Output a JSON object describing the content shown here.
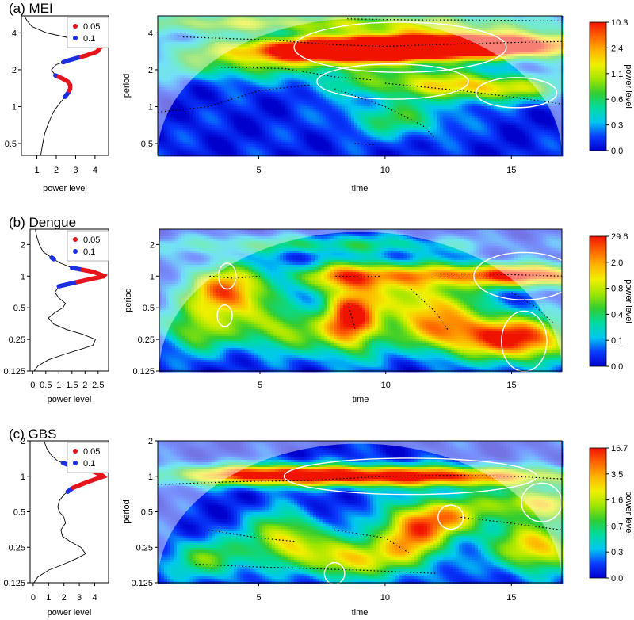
{
  "legend": [
    {
      "label": "0.05",
      "color": "#e8141c"
    },
    {
      "label": "0.1",
      "color": "#1c2fe0"
    }
  ],
  "colors": {
    "white_contour": "#ffffff",
    "ridge_line": "#000000",
    "spectrum_line": "#000000"
  },
  "colorbar_stops": [
    "#0000cd",
    "#0a3cff",
    "#00c8f0",
    "#00dca0",
    "#32cd32",
    "#a0e600",
    "#f0f000",
    "#ffb400",
    "#ff6400",
    "#f01400"
  ],
  "chart_data": [
    {
      "type": "heatmap",
      "title": "(a) MEI",
      "xlabel": "time",
      "ylabel": "period",
      "xlim": [
        1,
        17
      ],
      "x_ticks": [
        "5",
        "10",
        "15"
      ],
      "x_tick_values": [
        5,
        10,
        15
      ],
      "ylim": [
        0.4,
        5.5
      ],
      "y_ticks": [
        "0.5",
        "1",
        "2",
        "4"
      ],
      "y_tick_values": [
        0.5,
        1,
        2,
        4
      ],
      "colorbar": {
        "label": "power level",
        "ticks": [
          "0.0",
          "0.3",
          "0.6",
          "1.1",
          "2.4",
          "10.3"
        ]
      },
      "global_spectrum": {
        "xlabel": "power level",
        "x_ticks": [
          "1",
          "2",
          "3",
          "4"
        ],
        "x_tick_values": [
          1,
          2,
          3,
          4
        ],
        "xlim": [
          0.2,
          4.7
        ],
        "period": [
          0.4,
          0.45,
          0.5,
          0.6,
          0.7,
          0.8,
          0.9,
          1.0,
          1.1,
          1.2,
          1.3,
          1.4,
          1.5,
          1.6,
          1.7,
          1.8,
          2.0,
          2.2,
          2.4,
          2.6,
          2.8,
          3.0,
          3.3,
          3.6,
          4.0,
          4.5,
          5.0,
          5.5
        ],
        "power": [
          1.2,
          1.25,
          1.3,
          1.4,
          1.55,
          1.7,
          1.85,
          2.05,
          2.25,
          2.45,
          2.62,
          2.72,
          2.72,
          2.6,
          2.3,
          1.95,
          1.75,
          2.0,
          2.7,
          3.5,
          4.1,
          4.25,
          3.9,
          2.8,
          1.5,
          0.75,
          0.5,
          0.35
        ],
        "sig_05": [
          [
            1.35,
            1.75
          ],
          [
            2.55,
            3.3
          ]
        ],
        "sig_1": [
          [
            1.2,
            1.35
          ],
          [
            1.75,
            1.8
          ],
          [
            2.3,
            2.55
          ],
          [
            3.3,
            3.55
          ]
        ]
      },
      "blobs": [
        {
          "x": 10.5,
          "p": 3.0,
          "a": 1.0,
          "sx": 4.5,
          "sy": 0.22
        },
        {
          "x": 13.5,
          "p": 3.3,
          "a": 0.75,
          "sx": 3.5,
          "sy": 0.25
        },
        {
          "x": 8.5,
          "p": 2.7,
          "a": 0.6,
          "sx": 2.5,
          "sy": 0.25
        },
        {
          "x": 11.0,
          "p": 1.6,
          "a": 0.45,
          "sx": 2.5,
          "sy": 0.3
        },
        {
          "x": 14.5,
          "p": 1.4,
          "a": 0.5,
          "sx": 2.0,
          "sy": 0.25
        },
        {
          "x": 4.0,
          "p": 2.2,
          "a": 0.35,
          "sx": 2.5,
          "sy": 0.3
        },
        {
          "x": 3.0,
          "p": 4.8,
          "a": 0.4,
          "sx": 3.0,
          "sy": 0.2
        },
        {
          "x": 10.5,
          "p": 4.8,
          "a": 0.45,
          "sx": 4.0,
          "sy": 0.2
        },
        {
          "x": 10.5,
          "p": 0.8,
          "a": 0.35,
          "sx": 1.5,
          "sy": 0.35
        }
      ],
      "sig_contours": [
        {
          "x": 10.6,
          "p": 3.05,
          "rx": 4.2,
          "ry": 0.2
        },
        {
          "x": 10.3,
          "p": 1.6,
          "rx": 3.0,
          "ry": 0.14
        },
        {
          "x": 15.2,
          "p": 1.3,
          "rx": 1.6,
          "ry": 0.12
        }
      ],
      "ridges": [
        [
          [
            2.0,
            3.7
          ],
          [
            5.5,
            3.5
          ],
          [
            8.0,
            3.2
          ],
          [
            10.0,
            3.1
          ],
          [
            12.0,
            3.2
          ],
          [
            14.0,
            3.3
          ],
          [
            17.0,
            3.4
          ]
        ],
        [
          [
            8.5,
            5.2
          ],
          [
            11.0,
            5.1
          ],
          [
            13.0,
            5.1
          ],
          [
            17.0,
            5.0
          ]
        ],
        [
          [
            3.5,
            2.1
          ],
          [
            6.0,
            2.05
          ],
          [
            8.0,
            1.75
          ],
          [
            9.5,
            1.65
          ]
        ],
        [
          [
            1.0,
            0.9
          ],
          [
            3.0,
            1.0
          ],
          [
            5.0,
            1.35
          ],
          [
            7.0,
            1.5
          ]
        ],
        [
          [
            10.0,
            1.55
          ],
          [
            13.0,
            1.35
          ],
          [
            15.0,
            1.2
          ],
          [
            17.0,
            1.05
          ]
        ],
        [
          [
            8.0,
            1.4
          ],
          [
            10.0,
            1.0
          ],
          [
            11.5,
            0.7
          ],
          [
            12.0,
            0.55
          ]
        ],
        [
          [
            8.8,
            0.5
          ],
          [
            9.6,
            0.49
          ]
        ]
      ]
    },
    {
      "type": "heatmap",
      "title": "(b) Dengue",
      "xlabel": "time",
      "ylabel": "period",
      "xlim": [
        1,
        17
      ],
      "x_ticks": [
        "5",
        "10",
        "15"
      ],
      "x_tick_values": [
        5,
        10,
        15
      ],
      "ylim": [
        0.125,
        2.8
      ],
      "y_ticks": [
        "0.125",
        "0.25",
        "0.5",
        "1",
        "2"
      ],
      "y_tick_values": [
        0.125,
        0.25,
        0.5,
        1,
        2
      ],
      "colorbar": {
        "label": "power level",
        "ticks": [
          "0.0",
          "0.1",
          "0.4",
          "0.8",
          "2.0",
          "29.6"
        ]
      },
      "global_spectrum": {
        "xlabel": "power level",
        "x_ticks": [
          "0",
          "0.5",
          "1",
          "1.5",
          "2",
          "2.5"
        ],
        "x_tick_values": [
          0,
          0.5,
          1,
          1.5,
          2,
          2.5
        ],
        "xlim": [
          -0.1,
          2.9
        ],
        "period": [
          0.125,
          0.14,
          0.16,
          0.18,
          0.2,
          0.22,
          0.25,
          0.28,
          0.31,
          0.35,
          0.4,
          0.45,
          0.5,
          0.55,
          0.62,
          0.7,
          0.8,
          0.9,
          1.0,
          1.1,
          1.2,
          1.35,
          1.5,
          1.7,
          2.0,
          2.4,
          2.8
        ],
        "power": [
          0.05,
          0.2,
          0.6,
          1.2,
          1.8,
          2.3,
          2.4,
          1.9,
          1.3,
          0.8,
          0.6,
          0.85,
          1.15,
          1.25,
          1.0,
          0.85,
          1.0,
          1.9,
          2.75,
          2.3,
          1.5,
          1.0,
          0.72,
          0.4,
          0.25,
          0.15,
          0.1
        ],
        "sig_05": [
          [
            0.88,
            1.15
          ]
        ],
        "sig_1": [
          [
            0.8,
            0.88
          ],
          [
            1.15,
            1.2
          ],
          [
            1.45,
            1.5
          ]
        ]
      },
      "blobs": [
        {
          "x": 3.7,
          "p": 0.7,
          "a": 0.85,
          "sx": 1.2,
          "sy": 0.6
        },
        {
          "x": 8.6,
          "p": 0.4,
          "a": 0.9,
          "sx": 0.8,
          "sy": 0.8
        },
        {
          "x": 8.5,
          "p": 1.0,
          "a": 0.55,
          "sx": 1.5,
          "sy": 0.3
        },
        {
          "x": 11.5,
          "p": 0.55,
          "a": 0.6,
          "sx": 1.5,
          "sy": 0.7
        },
        {
          "x": 15.5,
          "p": 0.25,
          "a": 0.85,
          "sx": 1.4,
          "sy": 0.5
        },
        {
          "x": 15.8,
          "p": 1.0,
          "a": 0.7,
          "sx": 2.0,
          "sy": 0.25
        },
        {
          "x": 13.0,
          "p": 1.05,
          "a": 0.4,
          "sx": 3.0,
          "sy": 0.25
        },
        {
          "x": 6.0,
          "p": 0.3,
          "a": 0.5,
          "sx": 1.2,
          "sy": 0.5
        },
        {
          "x": 2.5,
          "p": 0.3,
          "a": 0.45,
          "sx": 1.0,
          "sy": 0.5
        },
        {
          "x": 12.8,
          "p": 0.28,
          "a": 0.55,
          "sx": 1.5,
          "sy": 0.5
        },
        {
          "x": 7.0,
          "p": 2.0,
          "a": 0.3,
          "sx": 5.0,
          "sy": 0.2
        }
      ],
      "sig_contours": [
        {
          "x": 3.7,
          "p": 1.0,
          "rx": 0.35,
          "ry": 0.12
        },
        {
          "x": 3.6,
          "p": 0.42,
          "rx": 0.3,
          "ry": 0.1
        },
        {
          "x": 15.5,
          "p": 0.24,
          "rx": 0.9,
          "ry": 0.28
        },
        {
          "x": 15.5,
          "p": 1.0,
          "rx": 2.0,
          "ry": 0.22
        }
      ],
      "ridges": [
        [
          [
            3.0,
            1.0
          ],
          [
            4.0,
            0.95
          ],
          [
            5.0,
            1.0
          ]
        ],
        [
          [
            8.0,
            1.0
          ],
          [
            9.0,
            0.98
          ],
          [
            9.8,
            1.0
          ]
        ],
        [
          [
            12.0,
            1.05
          ],
          [
            14.0,
            1.05
          ],
          [
            17.0,
            1.0
          ]
        ],
        [
          [
            8.5,
            0.55
          ],
          [
            8.8,
            0.3
          ]
        ],
        [
          [
            11.0,
            0.75
          ],
          [
            12.0,
            0.45
          ],
          [
            12.5,
            0.3
          ]
        ],
        [
          [
            15.0,
            0.7
          ],
          [
            16.0,
            0.5
          ],
          [
            16.7,
            0.35
          ]
        ]
      ]
    },
    {
      "type": "heatmap",
      "title": "(c) GBS",
      "xlabel": "time",
      "ylabel": "period",
      "xlim": [
        1,
        17
      ],
      "x_ticks": [
        "5",
        "10",
        "15"
      ],
      "x_tick_values": [
        5,
        10,
        15
      ],
      "ylim": [
        0.125,
        2.0
      ],
      "y_ticks": [
        "0.125",
        "0.25",
        "0.5",
        "1",
        "2"
      ],
      "y_tick_values": [
        0.125,
        0.25,
        0.5,
        1,
        2
      ],
      "colorbar": {
        "label": "power level",
        "ticks": [
          "0.0",
          "0.3",
          "0.7",
          "1.6",
          "3.5",
          "16.7"
        ]
      },
      "global_spectrum": {
        "xlabel": "power level",
        "x_ticks": [
          "0",
          "1",
          "2",
          "3",
          "4"
        ],
        "x_tick_values": [
          0,
          1,
          2,
          3,
          4
        ],
        "xlim": [
          -0.2,
          4.9
        ],
        "period": [
          0.125,
          0.14,
          0.16,
          0.18,
          0.2,
          0.22,
          0.25,
          0.28,
          0.31,
          0.35,
          0.4,
          0.45,
          0.5,
          0.55,
          0.62,
          0.7,
          0.8,
          0.9,
          1.0,
          1.1,
          1.2,
          1.35,
          1.5,
          1.7,
          2.0
        ],
        "power": [
          0.05,
          0.3,
          1.0,
          2.0,
          2.8,
          3.4,
          3.1,
          2.4,
          1.9,
          1.8,
          2.1,
          2.0,
          1.7,
          1.6,
          1.7,
          2.0,
          2.6,
          3.6,
          4.6,
          3.9,
          2.6,
          1.6,
          1.2,
          0.9,
          0.7
        ],
        "sig_05": [
          [
            0.8,
            1.2
          ]
        ],
        "sig_1": [
          [
            0.74,
            0.8
          ],
          [
            1.2,
            1.3
          ]
        ]
      },
      "blobs": [
        {
          "x": 10.5,
          "p": 1.0,
          "a": 1.0,
          "sx": 5.0,
          "sy": 0.2
        },
        {
          "x": 5.0,
          "p": 1.05,
          "a": 0.5,
          "sx": 2.5,
          "sy": 0.2
        },
        {
          "x": 6.0,
          "p": 0.3,
          "a": 0.6,
          "sx": 1.0,
          "sy": 0.5
        },
        {
          "x": 8.5,
          "p": 0.2,
          "a": 0.65,
          "sx": 1.2,
          "sy": 0.4
        },
        {
          "x": 11.0,
          "p": 0.3,
          "a": 0.7,
          "sx": 1.0,
          "sy": 0.6
        },
        {
          "x": 12.5,
          "p": 0.45,
          "a": 0.6,
          "sx": 1.2,
          "sy": 0.4
        },
        {
          "x": 16.0,
          "p": 0.25,
          "a": 0.7,
          "sx": 1.2,
          "sy": 0.5
        },
        {
          "x": 16.0,
          "p": 0.6,
          "a": 0.6,
          "sx": 1.5,
          "sy": 0.3
        },
        {
          "x": 3.0,
          "p": 0.2,
          "a": 0.4,
          "sx": 1.2,
          "sy": 0.4
        }
      ],
      "sig_contours": [
        {
          "x": 11.0,
          "p": 1.0,
          "rx": 5.0,
          "ry": 0.15
        },
        {
          "x": 12.6,
          "p": 0.45,
          "rx": 0.5,
          "ry": 0.1
        },
        {
          "x": 8.0,
          "p": 0.15,
          "rx": 0.4,
          "ry": 0.09
        },
        {
          "x": 16.2,
          "p": 0.6,
          "rx": 0.8,
          "ry": 0.16
        }
      ],
      "ridges": [
        [
          [
            1.0,
            0.85
          ],
          [
            4.0,
            0.9
          ],
          [
            7.0,
            0.92
          ],
          [
            10.0,
            1.0
          ],
          [
            13.0,
            1.02
          ],
          [
            15.0,
            1.0
          ],
          [
            17.0,
            0.95
          ]
        ],
        [
          [
            3.0,
            0.35
          ],
          [
            5.0,
            0.3
          ],
          [
            6.5,
            0.28
          ]
        ],
        [
          [
            8.0,
            0.35
          ],
          [
            10.0,
            0.3
          ],
          [
            11.0,
            0.22
          ]
        ],
        [
          [
            13.0,
            0.45
          ],
          [
            15.0,
            0.4
          ],
          [
            17.0,
            0.35
          ]
        ],
        [
          [
            2.5,
            0.18
          ],
          [
            5.0,
            0.17
          ],
          [
            9.0,
            0.16
          ],
          [
            12.0,
            0.15
          ]
        ]
      ]
    }
  ]
}
